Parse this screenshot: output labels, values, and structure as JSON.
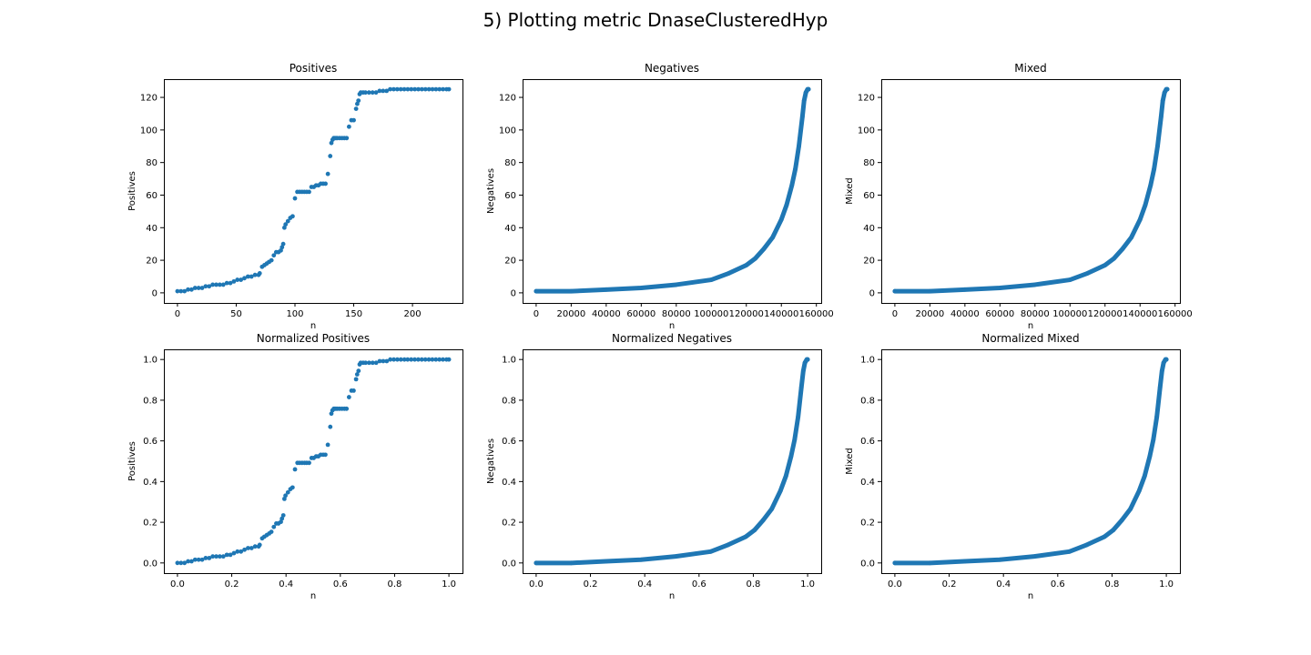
{
  "figure": {
    "suptitle": "5) Plotting metric DnaseClusteredHyp",
    "marker_color": "#1f77b4",
    "grid": false,
    "legend": "none"
  },
  "chart_data": [
    {
      "type": "scatter",
      "title": "Positives",
      "xlabel": "n",
      "ylabel": "Positives",
      "xlim": [
        -11.55,
        242.55
      ],
      "ylim": [
        -6.2,
        131.2
      ],
      "xticks": [
        0,
        50,
        100,
        150,
        200
      ],
      "xtick_labels": [
        "0",
        "50",
        "100",
        "150",
        "200"
      ],
      "yticks": [
        0,
        20,
        40,
        60,
        80,
        100,
        120
      ],
      "ytick_labels": [
        "0",
        "20",
        "40",
        "60",
        "80",
        "100",
        "120"
      ],
      "x": [
        0,
        3,
        6,
        9,
        12,
        15,
        18,
        21,
        24,
        27,
        30,
        33,
        36,
        39,
        42,
        45,
        48,
        51,
        54,
        57,
        60,
        63,
        66,
        69,
        70,
        72,
        74,
        76,
        78,
        80,
        82,
        84,
        86,
        88,
        89,
        90,
        91,
        92,
        94,
        96,
        98,
        100,
        102,
        104,
        106,
        108,
        110,
        112,
        114,
        116,
        118,
        120,
        122,
        124,
        126,
        128,
        130,
        131,
        132,
        133,
        134,
        135,
        136,
        138,
        140,
        142,
        144,
        146,
        148,
        150,
        152,
        153,
        154,
        155,
        156,
        158,
        160,
        163,
        166,
        169,
        172,
        175,
        178,
        181,
        184,
        187,
        190,
        193,
        196,
        199,
        202,
        205,
        208,
        211,
        214,
        217,
        220,
        223,
        226,
        229,
        231
      ],
      "y": [
        1,
        1,
        1,
        2,
        2,
        3,
        3,
        3,
        4,
        4,
        5,
        5,
        5,
        5,
        6,
        6,
        7,
        8,
        8,
        9,
        10,
        10,
        11,
        11,
        12,
        16,
        17,
        18,
        19,
        20,
        23,
        25,
        25,
        26,
        28,
        30,
        40,
        42,
        44,
        46,
        47,
        58,
        62,
        62,
        62,
        62,
        62,
        62,
        65,
        65,
        66,
        66,
        67,
        67,
        67,
        73,
        84,
        92,
        94,
        95,
        95,
        95,
        95,
        95,
        95,
        95,
        95,
        102,
        106,
        106,
        113,
        116,
        118,
        122,
        123,
        123,
        123,
        123,
        123,
        123,
        124,
        124,
        124,
        125,
        125,
        125,
        125,
        125,
        125,
        125,
        125,
        125,
        125,
        125,
        125,
        125,
        125,
        125,
        125,
        125,
        125
      ]
    },
    {
      "type": "scatter",
      "title": "Negatives",
      "xlabel": "n",
      "ylabel": "Negatives",
      "xlim": [
        -7750,
        162750
      ],
      "ylim": [
        -6.2,
        131.2
      ],
      "xticks": [
        0,
        20000,
        40000,
        60000,
        80000,
        100000,
        120000,
        140000,
        160000
      ],
      "xtick_labels": [
        "0",
        "20000",
        "40000",
        "60000",
        "80000",
        "100000",
        "120000",
        "140000",
        "160000"
      ],
      "yticks": [
        0,
        20,
        40,
        60,
        80,
        100,
        120
      ],
      "ytick_labels": [
        "0",
        "20",
        "40",
        "60",
        "80",
        "100",
        "120"
      ],
      "x": [
        0,
        20000,
        40000,
        60000,
        80000,
        100000,
        110000,
        120000,
        125000,
        130000,
        135000,
        140000,
        143000,
        146000,
        148000,
        150000,
        152000,
        153000,
        154000,
        155000,
        155500
      ],
      "y": [
        1,
        1,
        2,
        3,
        5,
        8,
        12,
        17,
        21,
        27,
        34,
        45,
        54,
        66,
        76,
        90,
        108,
        118,
        123,
        125,
        125
      ]
    },
    {
      "type": "scatter",
      "title": "Mixed",
      "xlabel": "n",
      "ylabel": "Mixed",
      "xlim": [
        -7750,
        162750
      ],
      "ylim": [
        -6.2,
        131.2
      ],
      "xticks": [
        0,
        20000,
        40000,
        60000,
        80000,
        100000,
        120000,
        140000,
        160000
      ],
      "xtick_labels": [
        "0",
        "20000",
        "40000",
        "60000",
        "80000",
        "100000",
        "120000",
        "140000",
        "160000"
      ],
      "yticks": [
        0,
        20,
        40,
        60,
        80,
        100,
        120
      ],
      "ytick_labels": [
        "0",
        "20",
        "40",
        "60",
        "80",
        "100",
        "120"
      ],
      "x": [
        0,
        20000,
        40000,
        60000,
        80000,
        100000,
        110000,
        120000,
        125000,
        130000,
        135000,
        140000,
        143000,
        146000,
        148000,
        150000,
        152000,
        153000,
        154000,
        155000,
        155500
      ],
      "y": [
        1,
        1,
        2,
        3,
        5,
        8,
        12,
        17,
        21,
        27,
        34,
        45,
        54,
        66,
        76,
        90,
        108,
        118,
        123,
        125,
        125
      ]
    },
    {
      "type": "scatter",
      "title": "Normalized Positives",
      "xlabel": "n",
      "ylabel": "Positives",
      "xlim": [
        -0.05,
        1.05
      ],
      "ylim": [
        -0.05,
        1.05
      ],
      "xticks": [
        0,
        0.2,
        0.4,
        0.6,
        0.8,
        1.0
      ],
      "xtick_labels": [
        "0.0",
        "0.2",
        "0.4",
        "0.6",
        "0.8",
        "1.0"
      ],
      "yticks": [
        0,
        0.2,
        0.4,
        0.6,
        0.8,
        1.0
      ],
      "ytick_labels": [
        "0.0",
        "0.2",
        "0.4",
        "0.6",
        "0.8",
        "1.0"
      ],
      "x": [
        0,
        0.013,
        0.026,
        0.039,
        0.052,
        0.065,
        0.078,
        0.091,
        0.104,
        0.117,
        0.13,
        0.143,
        0.156,
        0.169,
        0.182,
        0.195,
        0.208,
        0.221,
        0.234,
        0.247,
        0.26,
        0.273,
        0.286,
        0.299,
        0.303,
        0.312,
        0.32,
        0.329,
        0.338,
        0.346,
        0.355,
        0.364,
        0.372,
        0.381,
        0.385,
        0.39,
        0.394,
        0.398,
        0.407,
        0.416,
        0.424,
        0.433,
        0.442,
        0.45,
        0.459,
        0.468,
        0.476,
        0.485,
        0.494,
        0.502,
        0.511,
        0.519,
        0.528,
        0.537,
        0.545,
        0.554,
        0.563,
        0.567,
        0.571,
        0.576,
        0.58,
        0.584,
        0.589,
        0.597,
        0.606,
        0.615,
        0.623,
        0.632,
        0.641,
        0.649,
        0.658,
        0.662,
        0.667,
        0.671,
        0.675,
        0.684,
        0.693,
        0.706,
        0.719,
        0.732,
        0.745,
        0.758,
        0.771,
        0.784,
        0.797,
        0.81,
        0.823,
        0.836,
        0.848,
        0.861,
        0.874,
        0.887,
        0.9,
        0.913,
        0.926,
        0.939,
        0.952,
        0.965,
        0.978,
        0.991,
        1.0
      ],
      "y": [
        0,
        0,
        0,
        0.008,
        0.008,
        0.016,
        0.016,
        0.016,
        0.024,
        0.024,
        0.032,
        0.032,
        0.032,
        0.032,
        0.04,
        0.04,
        0.048,
        0.056,
        0.056,
        0.065,
        0.073,
        0.073,
        0.081,
        0.081,
        0.089,
        0.121,
        0.129,
        0.137,
        0.145,
        0.153,
        0.177,
        0.194,
        0.194,
        0.202,
        0.218,
        0.234,
        0.315,
        0.331,
        0.347,
        0.363,
        0.371,
        0.46,
        0.492,
        0.492,
        0.492,
        0.492,
        0.492,
        0.492,
        0.516,
        0.516,
        0.524,
        0.524,
        0.532,
        0.532,
        0.532,
        0.581,
        0.669,
        0.734,
        0.75,
        0.758,
        0.758,
        0.758,
        0.758,
        0.758,
        0.758,
        0.758,
        0.758,
        0.815,
        0.847,
        0.847,
        0.903,
        0.927,
        0.944,
        0.976,
        0.984,
        0.984,
        0.984,
        0.984,
        0.984,
        0.984,
        0.992,
        0.992,
        0.992,
        1,
        1,
        1,
        1,
        1,
        1,
        1,
        1,
        1,
        1,
        1,
        1,
        1,
        1,
        1,
        1,
        1,
        1
      ]
    },
    {
      "type": "scatter",
      "title": "Normalized Negatives",
      "xlabel": "n",
      "ylabel": "Negatives",
      "xlim": [
        -0.05,
        1.05
      ],
      "ylim": [
        -0.05,
        1.05
      ],
      "xticks": [
        0,
        0.2,
        0.4,
        0.6,
        0.8,
        1.0
      ],
      "xtick_labels": [
        "0.0",
        "0.2",
        "0.4",
        "0.6",
        "0.8",
        "1.0"
      ],
      "yticks": [
        0,
        0.2,
        0.4,
        0.6,
        0.8,
        1.0
      ],
      "ytick_labels": [
        "0.0",
        "0.2",
        "0.4",
        "0.6",
        "0.8",
        "1.0"
      ],
      "x": [
        0,
        0.129,
        0.257,
        0.386,
        0.514,
        0.643,
        0.707,
        0.772,
        0.804,
        0.836,
        0.868,
        0.9,
        0.92,
        0.939,
        0.952,
        0.965,
        0.977,
        0.984,
        0.99,
        0.997,
        1.0
      ],
      "y": [
        0,
        0,
        0.008,
        0.016,
        0.032,
        0.056,
        0.089,
        0.129,
        0.161,
        0.21,
        0.266,
        0.355,
        0.427,
        0.524,
        0.605,
        0.718,
        0.863,
        0.944,
        0.984,
        1,
        1
      ]
    },
    {
      "type": "scatter",
      "title": "Normalized Mixed",
      "xlabel": "n",
      "ylabel": "Mixed",
      "xlim": [
        -0.05,
        1.05
      ],
      "ylim": [
        -0.05,
        1.05
      ],
      "xticks": [
        0,
        0.2,
        0.4,
        0.6,
        0.8,
        1.0
      ],
      "xtick_labels": [
        "0.0",
        "0.2",
        "0.4",
        "0.6",
        "0.8",
        "1.0"
      ],
      "yticks": [
        0,
        0.2,
        0.4,
        0.6,
        0.8,
        1.0
      ],
      "ytick_labels": [
        "0.0",
        "0.2",
        "0.4",
        "0.6",
        "0.8",
        "1.0"
      ],
      "x": [
        0,
        0.129,
        0.257,
        0.386,
        0.514,
        0.643,
        0.707,
        0.772,
        0.804,
        0.836,
        0.868,
        0.9,
        0.92,
        0.939,
        0.952,
        0.965,
        0.977,
        0.984,
        0.99,
        0.997,
        1.0
      ],
      "y": [
        0,
        0,
        0.008,
        0.016,
        0.032,
        0.056,
        0.089,
        0.129,
        0.161,
        0.21,
        0.266,
        0.355,
        0.427,
        0.524,
        0.605,
        0.718,
        0.863,
        0.944,
        0.984,
        1,
        1
      ]
    }
  ]
}
